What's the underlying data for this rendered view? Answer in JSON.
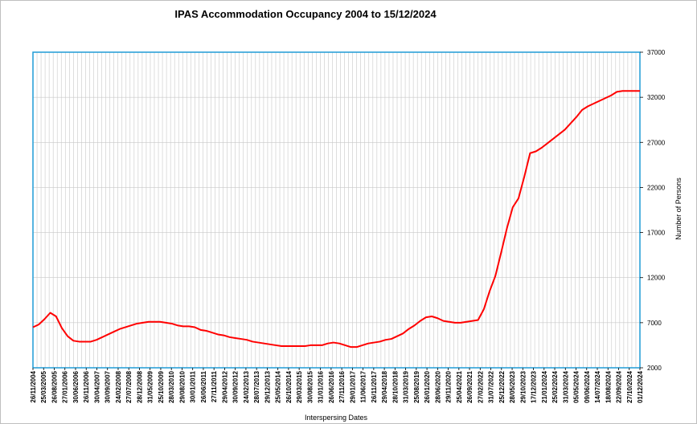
{
  "chart_data": {
    "type": "line",
    "title": "IPAS Accommodation Occupancy 2004 to 15/12/2024",
    "xlabel": "Interspersing Dates",
    "ylabel": "Number of Persons",
    "ylim": [
      2000,
      37000
    ],
    "yticks": [
      "2000",
      "7000",
      "12000",
      "17000",
      "22000",
      "27000",
      "32000",
      "37000"
    ],
    "xticks": [
      "26/11/2004",
      "25/03/2005",
      "26/08/2005",
      "27/01/2006",
      "30/06/2006",
      "26/11/2006",
      "30/04/2007",
      "30/09/2007",
      "24/02/2008",
      "27/07/2008",
      "28/12/2008",
      "31/05/2009",
      "25/10/2009",
      "28/03/2010",
      "29/08/2010",
      "30/01/2011",
      "26/06/2011",
      "27/11/2011",
      "29/04/2012",
      "30/09/2012",
      "24/02/2013",
      "28/07/2013",
      "29/12/2013",
      "25/05/2014",
      "26/10/2014",
      "29/03/2015",
      "30/08/2015",
      "31/01/2016",
      "26/06/2016",
      "27/11/2016",
      "29/01/2017",
      "11/06/2017",
      "26/11/2017",
      "29/04/2018",
      "28/10/2018",
      "31/03/2019",
      "25/08/2019",
      "26/01/2020",
      "28/06/2020",
      "29/11/2020",
      "25/04/2021",
      "26/09/2021",
      "27/02/2022",
      "31/07/2022",
      "25/12/2022",
      "28/05/2023",
      "29/10/2023",
      "17/12/2023",
      "21/01/2024",
      "25/02/2024",
      "31/03/2024",
      "05/05/2024",
      "09/06/2024",
      "14/07/2024",
      "18/08/2024",
      "22/09/2024",
      "27/10/2024",
      "01/12/2024"
    ],
    "grid": true,
    "line_color": "#ff0000",
    "plot_border_color": "#1f9bd6",
    "series": [
      {
        "name": "",
        "points": [
          [
            0,
            6500
          ],
          [
            1,
            6800
          ],
          [
            2,
            7400
          ],
          [
            3,
            8100
          ],
          [
            4,
            7700
          ],
          [
            5,
            6400
          ],
          [
            6,
            5500
          ],
          [
            7,
            5000
          ],
          [
            8,
            4900
          ],
          [
            9,
            4900
          ],
          [
            10,
            4900
          ],
          [
            11,
            5100
          ],
          [
            12,
            5400
          ],
          [
            13,
            5700
          ],
          [
            14,
            6000
          ],
          [
            15,
            6300
          ],
          [
            16,
            6500
          ],
          [
            17,
            6700
          ],
          [
            18,
            6900
          ],
          [
            19,
            7000
          ],
          [
            20,
            7100
          ],
          [
            21,
            7100
          ],
          [
            22,
            7100
          ],
          [
            23,
            7000
          ],
          [
            24,
            6900
          ],
          [
            25,
            6700
          ],
          [
            26,
            6600
          ],
          [
            27,
            6600
          ],
          [
            28,
            6500
          ],
          [
            29,
            6200
          ],
          [
            30,
            6100
          ],
          [
            31,
            5900
          ],
          [
            32,
            5700
          ],
          [
            33,
            5600
          ],
          [
            34,
            5400
          ],
          [
            35,
            5300
          ],
          [
            36,
            5200
          ],
          [
            37,
            5100
          ],
          [
            38,
            4900
          ],
          [
            39,
            4800
          ],
          [
            40,
            4700
          ],
          [
            41,
            4600
          ],
          [
            42,
            4500
          ],
          [
            43,
            4400
          ],
          [
            44,
            4400
          ],
          [
            45,
            4400
          ],
          [
            46,
            4400
          ],
          [
            47,
            4400
          ],
          [
            48,
            4500
          ],
          [
            49,
            4500
          ],
          [
            50,
            4500
          ],
          [
            51,
            4700
          ],
          [
            52,
            4800
          ],
          [
            53,
            4700
          ],
          [
            54,
            4500
          ],
          [
            55,
            4300
          ],
          [
            56,
            4300
          ],
          [
            57,
            4500
          ],
          [
            58,
            4700
          ],
          [
            59,
            4800
          ],
          [
            60,
            4900
          ],
          [
            61,
            5100
          ],
          [
            62,
            5200
          ],
          [
            63,
            5500
          ],
          [
            64,
            5800
          ],
          [
            65,
            6300
          ],
          [
            66,
            6700
          ],
          [
            67,
            7200
          ],
          [
            68,
            7600
          ],
          [
            69,
            7700
          ],
          [
            70,
            7500
          ],
          [
            71,
            7200
          ],
          [
            72,
            7100
          ],
          [
            73,
            7000
          ],
          [
            74,
            7000
          ],
          [
            75,
            7100
          ],
          [
            76,
            7200
          ],
          [
            77,
            7300
          ],
          [
            78,
            8500
          ],
          [
            79,
            10500
          ],
          [
            80,
            12200
          ],
          [
            81,
            14800
          ],
          [
            82,
            17500
          ],
          [
            83,
            19800
          ],
          [
            84,
            20800
          ],
          [
            85,
            23200
          ],
          [
            86,
            25800
          ],
          [
            87,
            26000
          ],
          [
            88,
            26400
          ],
          [
            89,
            26900
          ],
          [
            90,
            27400
          ],
          [
            91,
            27900
          ],
          [
            92,
            28400
          ],
          [
            93,
            29100
          ],
          [
            94,
            29800
          ],
          [
            95,
            30600
          ],
          [
            96,
            31000
          ],
          [
            97,
            31300
          ],
          [
            98,
            31600
          ],
          [
            99,
            31900
          ],
          [
            100,
            32200
          ],
          [
            101,
            32600
          ],
          [
            102,
            32700
          ],
          [
            103,
            32700
          ],
          [
            104,
            32700
          ],
          [
            105,
            32700
          ]
        ]
      }
    ]
  }
}
